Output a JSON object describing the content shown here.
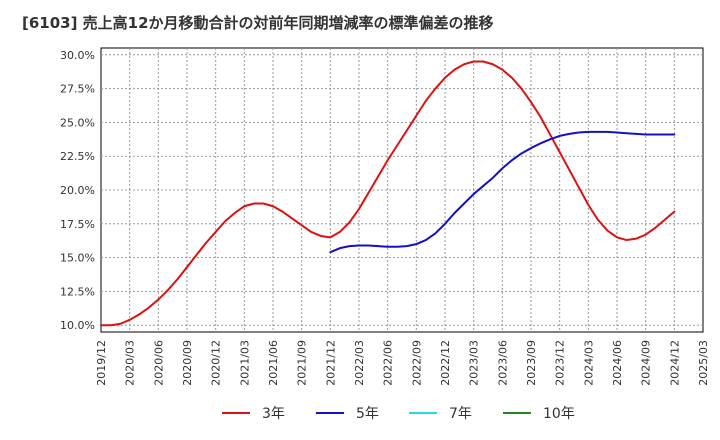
{
  "page": {
    "title": "[6103]  売上高12か月移動合計の対前年同期増減率の標準偏差の推移"
  },
  "chart_data": {
    "type": "line",
    "title": "[6103]  売上高12か月移動合計の対前年同期増減率の標準偏差の推移",
    "xlabel": "",
    "ylabel": "",
    "ylim": [
      9.5,
      30.5
    ],
    "y_ticks": [
      {
        "value": 10.0,
        "label": "10.0%"
      },
      {
        "value": 12.5,
        "label": "12.5%"
      },
      {
        "value": 15.0,
        "label": "15.0%"
      },
      {
        "value": 17.5,
        "label": "17.5%"
      },
      {
        "value": 20.0,
        "label": "20.0%"
      },
      {
        "value": 22.5,
        "label": "22.5%"
      },
      {
        "value": 25.0,
        "label": "25.0%"
      },
      {
        "value": 27.5,
        "label": "27.5%"
      },
      {
        "value": 30.0,
        "label": "30.0%"
      }
    ],
    "x_tick_labels": [
      "2019/12",
      "2020/03",
      "2020/06",
      "2020/09",
      "2020/12",
      "2021/03",
      "2021/06",
      "2021/09",
      "2021/12",
      "2022/03",
      "2022/06",
      "2022/09",
      "2022/12",
      "2023/03",
      "2023/06",
      "2023/09",
      "2023/12",
      "2024/03",
      "2024/06",
      "2024/09",
      "2024/12",
      "2025/03"
    ],
    "grid": true,
    "legend_position": "bottom",
    "series": [
      {
        "name": "3年",
        "color": "#dd1111",
        "x": [
          "2019/12",
          "2020/01",
          "2020/02",
          "2020/03",
          "2020/04",
          "2020/05",
          "2020/06",
          "2020/07",
          "2020/08",
          "2020/09",
          "2020/10",
          "2020/11",
          "2020/12",
          "2021/01",
          "2021/02",
          "2021/03",
          "2021/04",
          "2021/05",
          "2021/06",
          "2021/07",
          "2021/08",
          "2021/09",
          "2021/10",
          "2021/11",
          "2021/12",
          "2022/01",
          "2022/02",
          "2022/03",
          "2022/04",
          "2022/05",
          "2022/06",
          "2022/07",
          "2022/08",
          "2022/09",
          "2022/10",
          "2022/11",
          "2022/12",
          "2023/01",
          "2023/02",
          "2023/03",
          "2023/04",
          "2023/05",
          "2023/06",
          "2023/07",
          "2023/08",
          "2023/09",
          "2023/10",
          "2023/11",
          "2023/12",
          "2024/01",
          "2024/02",
          "2024/03",
          "2024/04",
          "2024/05",
          "2024/06",
          "2024/07",
          "2024/08",
          "2024/09",
          "2024/10",
          "2024/11",
          "2024/12"
        ],
        "values": [
          10.0,
          10.0,
          10.1,
          10.4,
          10.8,
          11.3,
          11.9,
          12.6,
          13.4,
          14.3,
          15.2,
          16.1,
          16.9,
          17.7,
          18.3,
          18.8,
          19.0,
          19.0,
          18.8,
          18.4,
          17.9,
          17.4,
          16.9,
          16.6,
          16.5,
          16.9,
          17.6,
          18.6,
          19.8,
          21.0,
          22.2,
          23.3,
          24.4,
          25.5,
          26.6,
          27.5,
          28.3,
          28.9,
          29.3,
          29.5,
          29.5,
          29.3,
          28.9,
          28.3,
          27.5,
          26.5,
          25.4,
          24.1,
          22.8,
          21.5,
          20.2,
          18.9,
          17.8,
          17.0,
          16.5,
          16.3,
          16.4,
          16.7,
          17.2,
          17.8,
          18.4
        ]
      },
      {
        "name": "5年",
        "color": "#1111cc",
        "x": [
          "2021/12",
          "2022/01",
          "2022/02",
          "2022/03",
          "2022/04",
          "2022/05",
          "2022/06",
          "2022/07",
          "2022/08",
          "2022/09",
          "2022/10",
          "2022/11",
          "2022/12",
          "2023/01",
          "2023/02",
          "2023/03",
          "2023/04",
          "2023/05",
          "2023/06",
          "2023/07",
          "2023/08",
          "2023/09",
          "2023/10",
          "2023/11",
          "2023/12",
          "2024/01",
          "2024/02",
          "2024/03",
          "2024/04",
          "2024/05",
          "2024/06",
          "2024/07",
          "2024/08",
          "2024/09",
          "2024/10",
          "2024/11",
          "2024/12"
        ],
        "values": [
          15.4,
          15.7,
          15.85,
          15.9,
          15.9,
          15.85,
          15.8,
          15.8,
          15.85,
          16.0,
          16.3,
          16.8,
          17.5,
          18.3,
          19.0,
          19.7,
          20.3,
          20.9,
          21.6,
          22.2,
          22.7,
          23.1,
          23.45,
          23.75,
          24.0,
          24.15,
          24.25,
          24.3,
          24.3,
          24.3,
          24.25,
          24.2,
          24.15,
          24.1,
          24.1,
          24.1,
          24.1
        ]
      },
      {
        "name": "7年",
        "color": "#22dddd",
        "x": [],
        "values": []
      },
      {
        "name": "10年",
        "color": "#228822",
        "x": [],
        "values": []
      }
    ]
  }
}
